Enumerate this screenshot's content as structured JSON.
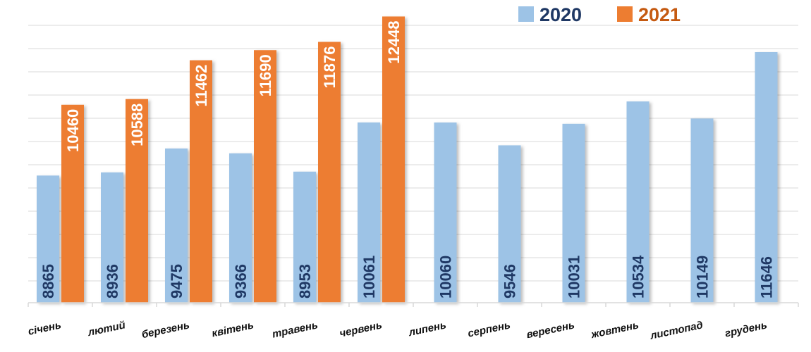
{
  "chart_data": {
    "type": "bar",
    "categories": [
      "січень",
      "лютий",
      "березень",
      "квітень",
      "травень",
      "червень",
      "липень",
      "серпень",
      "вересень",
      "жовтень",
      "листопад",
      "грудень"
    ],
    "series": [
      {
        "name": "2020",
        "color": "#9dc3e6",
        "label_color": "#1f3864",
        "values": [
          8865,
          8936,
          9475,
          9366,
          8953,
          10061,
          10060,
          9546,
          10031,
          10534,
          10149,
          11646
        ]
      },
      {
        "name": "2021",
        "color": "#ed7d31",
        "label_color": "#ffffff",
        "values": [
          10460,
          10588,
          11462,
          11690,
          11876,
          12448,
          null,
          null,
          null,
          null,
          null,
          null
        ]
      }
    ],
    "ylim": [
      6000,
      12550
    ],
    "grid": true,
    "legend": "top-right",
    "legend_2020_color": "#1f3864",
    "legend_2021_color": "#c55a11"
  }
}
